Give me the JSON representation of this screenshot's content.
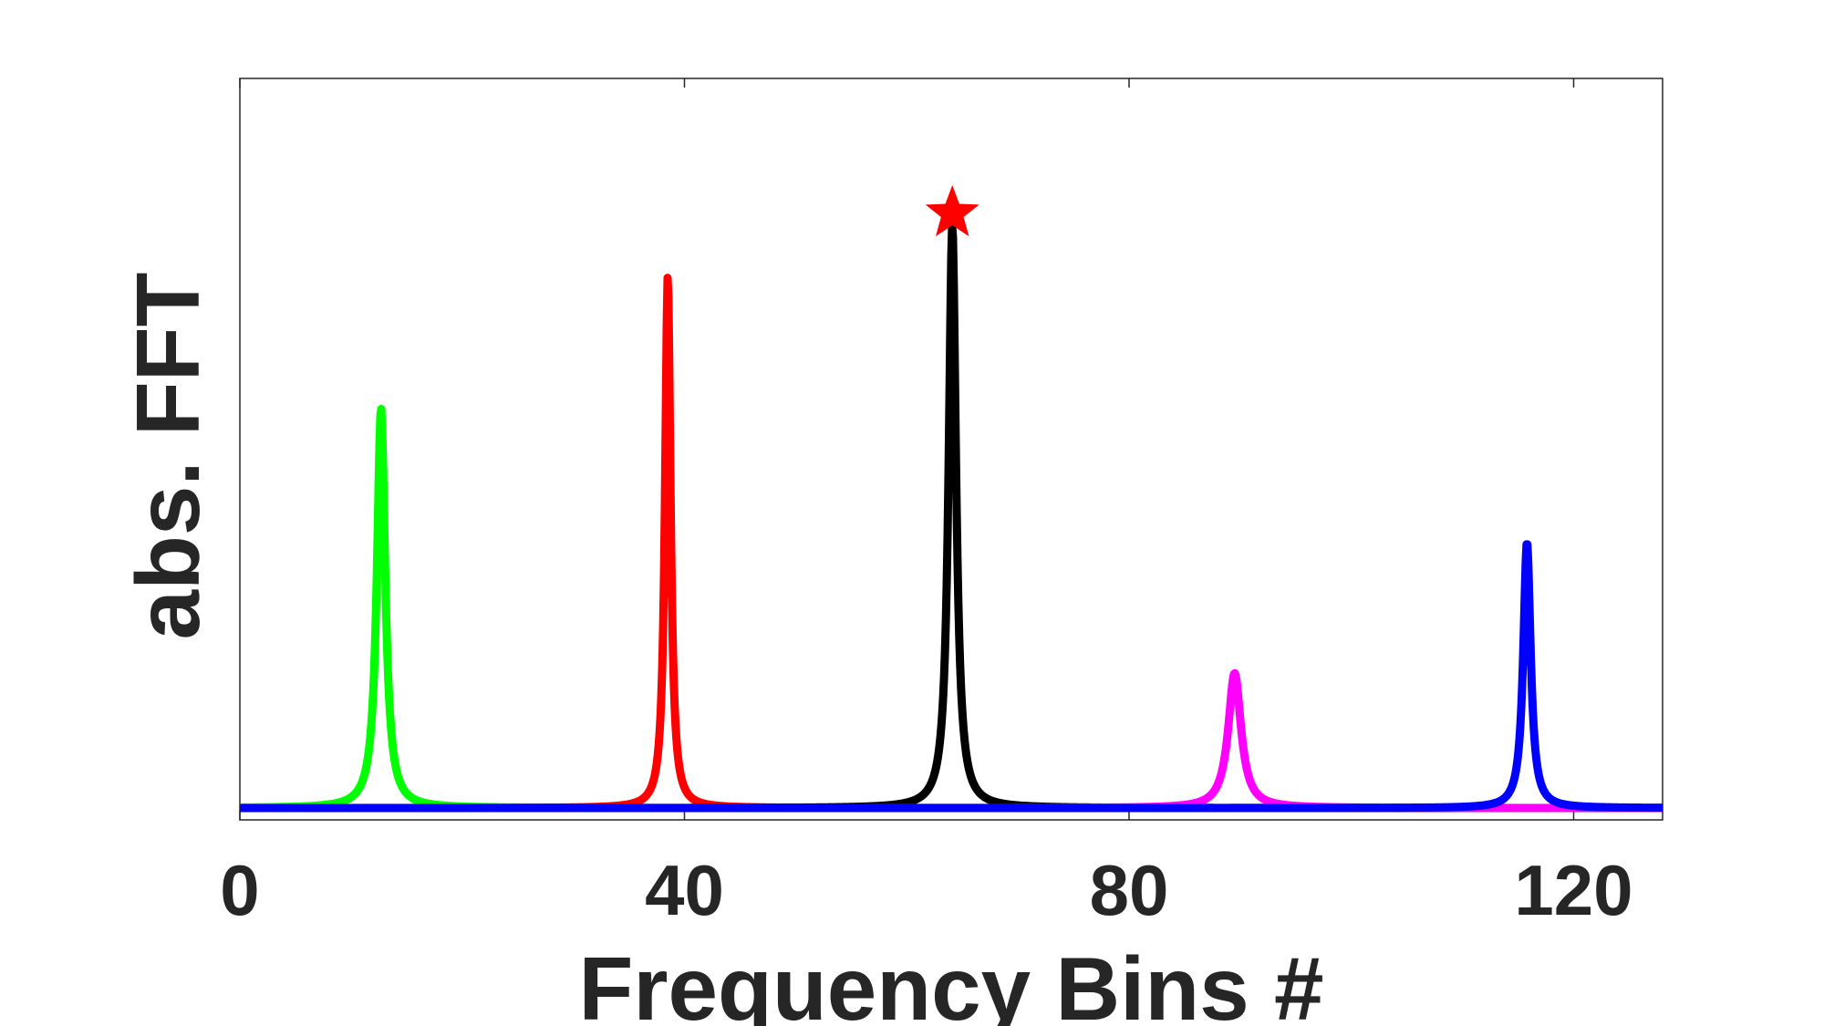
{
  "chart_data": {
    "type": "line",
    "title": "",
    "xlabel": "Frequency Bins #",
    "ylabel": "abs. FFT",
    "xlim": [
      0,
      128
    ],
    "ylim": [
      0,
      1
    ],
    "xticks": [
      0,
      40,
      80,
      120
    ],
    "xtick_labels": [
      "0",
      "40",
      "80",
      "120"
    ],
    "yticks_shown": false,
    "grid": false,
    "legend": "none",
    "series": [
      {
        "color": "#00ff00",
        "peak_bin": 12.7,
        "peak_value": 0.548,
        "width": 0.45
      },
      {
        "color": "#ff0000",
        "peak_bin": 38.5,
        "peak_value": 0.73,
        "width": 0.3
      },
      {
        "color": "#000000",
        "peak_bin": 64.1,
        "peak_value": 0.8,
        "width": 0.4
      },
      {
        "color": "#ff00ff",
        "peak_bin": 89.5,
        "peak_value": 0.185,
        "width": 0.7
      },
      {
        "color": "#0000ff",
        "peak_bin": 115.8,
        "peak_value": 0.365,
        "width": 0.4
      }
    ],
    "marker": {
      "shape": "star",
      "color": "#ff0000",
      "x": 64.1,
      "y": 0.815
    }
  }
}
